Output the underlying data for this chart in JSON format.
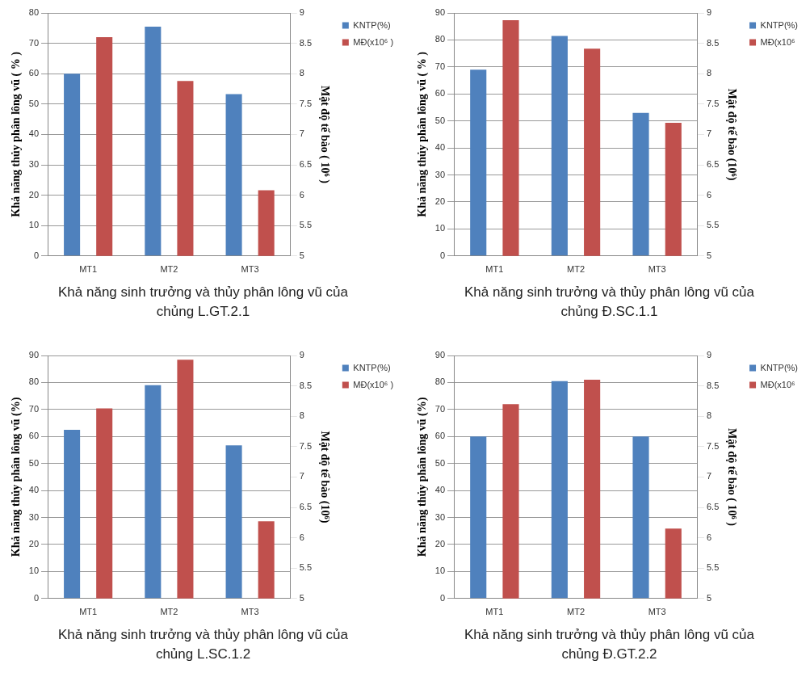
{
  "chart_data": [
    {
      "type": "bar",
      "title": "Khả năng sinh trưởng và thủy phân lông vũ của chủng L.GT.2.1",
      "ylabel": "Khả năng thủy phân lông vũ ( % )",
      "y2label": "Mật độ tế bào ( 10⁶ )",
      "categories": [
        "MT1",
        "MT2",
        "MT3"
      ],
      "series": [
        {
          "name": "KNTP(%)",
          "color": "#4f81bd",
          "values": [
            60,
            75.5,
            53.3
          ]
        },
        {
          "name": "MĐ(x10⁶ )",
          "color": "#c0504d",
          "axis": "y2",
          "values": [
            8.6,
            7.88,
            6.08
          ]
        }
      ],
      "ylim": [
        0,
        80
      ],
      "yticks": [
        0,
        10,
        20,
        30,
        40,
        50,
        60,
        70,
        80
      ],
      "y2lim": [
        5,
        9
      ],
      "y2ticks": [
        5,
        5.5,
        6,
        6.5,
        7,
        7.5,
        8,
        8.5,
        9
      ],
      "grid": "y",
      "legend": "right"
    },
    {
      "type": "bar",
      "title": "Khả năng sinh trưởng và thủy phân lông vũ của chủng Đ.SC.1.1",
      "ylabel": "Khả năng thủy phân lông vũ ( % )",
      "y2label": "Mật độ tế bào (10⁶)",
      "categories": [
        "MT1",
        "MT2",
        "MT3"
      ],
      "series": [
        {
          "name": "KNTP(%)",
          "color": "#4f81bd",
          "values": [
            69,
            81.5,
            53
          ]
        },
        {
          "name": "MĐ(x10⁶",
          "color": "#c0504d",
          "axis": "y2",
          "values": [
            8.88,
            8.41,
            7.19
          ]
        }
      ],
      "ylim": [
        0,
        90
      ],
      "yticks": [
        0,
        10,
        20,
        30,
        40,
        50,
        60,
        70,
        80,
        90
      ],
      "y2lim": [
        5,
        9
      ],
      "y2ticks": [
        5,
        5.5,
        6,
        6.5,
        7,
        7.5,
        8,
        8.5,
        9
      ],
      "grid": "y",
      "legend": "right"
    },
    {
      "type": "bar",
      "title": "Khả năng sinh trưởng và thủy phân lông vũ của chủng L.SC.1.2",
      "ylabel": "Khả năng thủy phân lông vũ (%)",
      "y2label": "Mật độ tế bào (10⁶)",
      "categories": [
        "MT1",
        "MT2",
        "MT3"
      ],
      "series": [
        {
          "name": "KNTP(%)",
          "color": "#4f81bd",
          "values": [
            62.5,
            79,
            56.7
          ]
        },
        {
          "name": "MĐ(x10⁶ )",
          "color": "#c0504d",
          "axis": "y2",
          "values": [
            8.13,
            8.93,
            6.27
          ]
        }
      ],
      "ylim": [
        0,
        90
      ],
      "yticks": [
        0,
        10,
        20,
        30,
        40,
        50,
        60,
        70,
        80,
        90
      ],
      "y2lim": [
        5,
        9
      ],
      "y2ticks": [
        5,
        5.5,
        6,
        6.5,
        7,
        7.5,
        8,
        8.5,
        9
      ],
      "grid": "y",
      "legend": "right"
    },
    {
      "type": "bar",
      "title": "Khả năng sinh trưởng và thủy phân lông vũ của chủng Đ.GT.2.2",
      "ylabel": "Khả năng thủy phân lông vũ (%)",
      "y2label": "Mật độ tế bào ( 10⁶ )",
      "categories": [
        "MT1",
        "MT2",
        "MT3"
      ],
      "series": [
        {
          "name": "KNTP(%)",
          "color": "#4f81bd",
          "values": [
            60,
            80.5,
            60
          ]
        },
        {
          "name": "MĐ(x10⁶",
          "color": "#c0504d",
          "axis": "y2",
          "values": [
            8.2,
            8.6,
            6.15
          ]
        }
      ],
      "ylim": [
        0,
        90
      ],
      "yticks": [
        0,
        10,
        20,
        30,
        40,
        50,
        60,
        70,
        80,
        90
      ],
      "y2lim": [
        5,
        9
      ],
      "y2ticks": [
        5,
        5.5,
        6,
        6.5,
        7,
        7.5,
        8,
        8.5,
        9
      ],
      "grid": "y",
      "legend": "right"
    }
  ]
}
